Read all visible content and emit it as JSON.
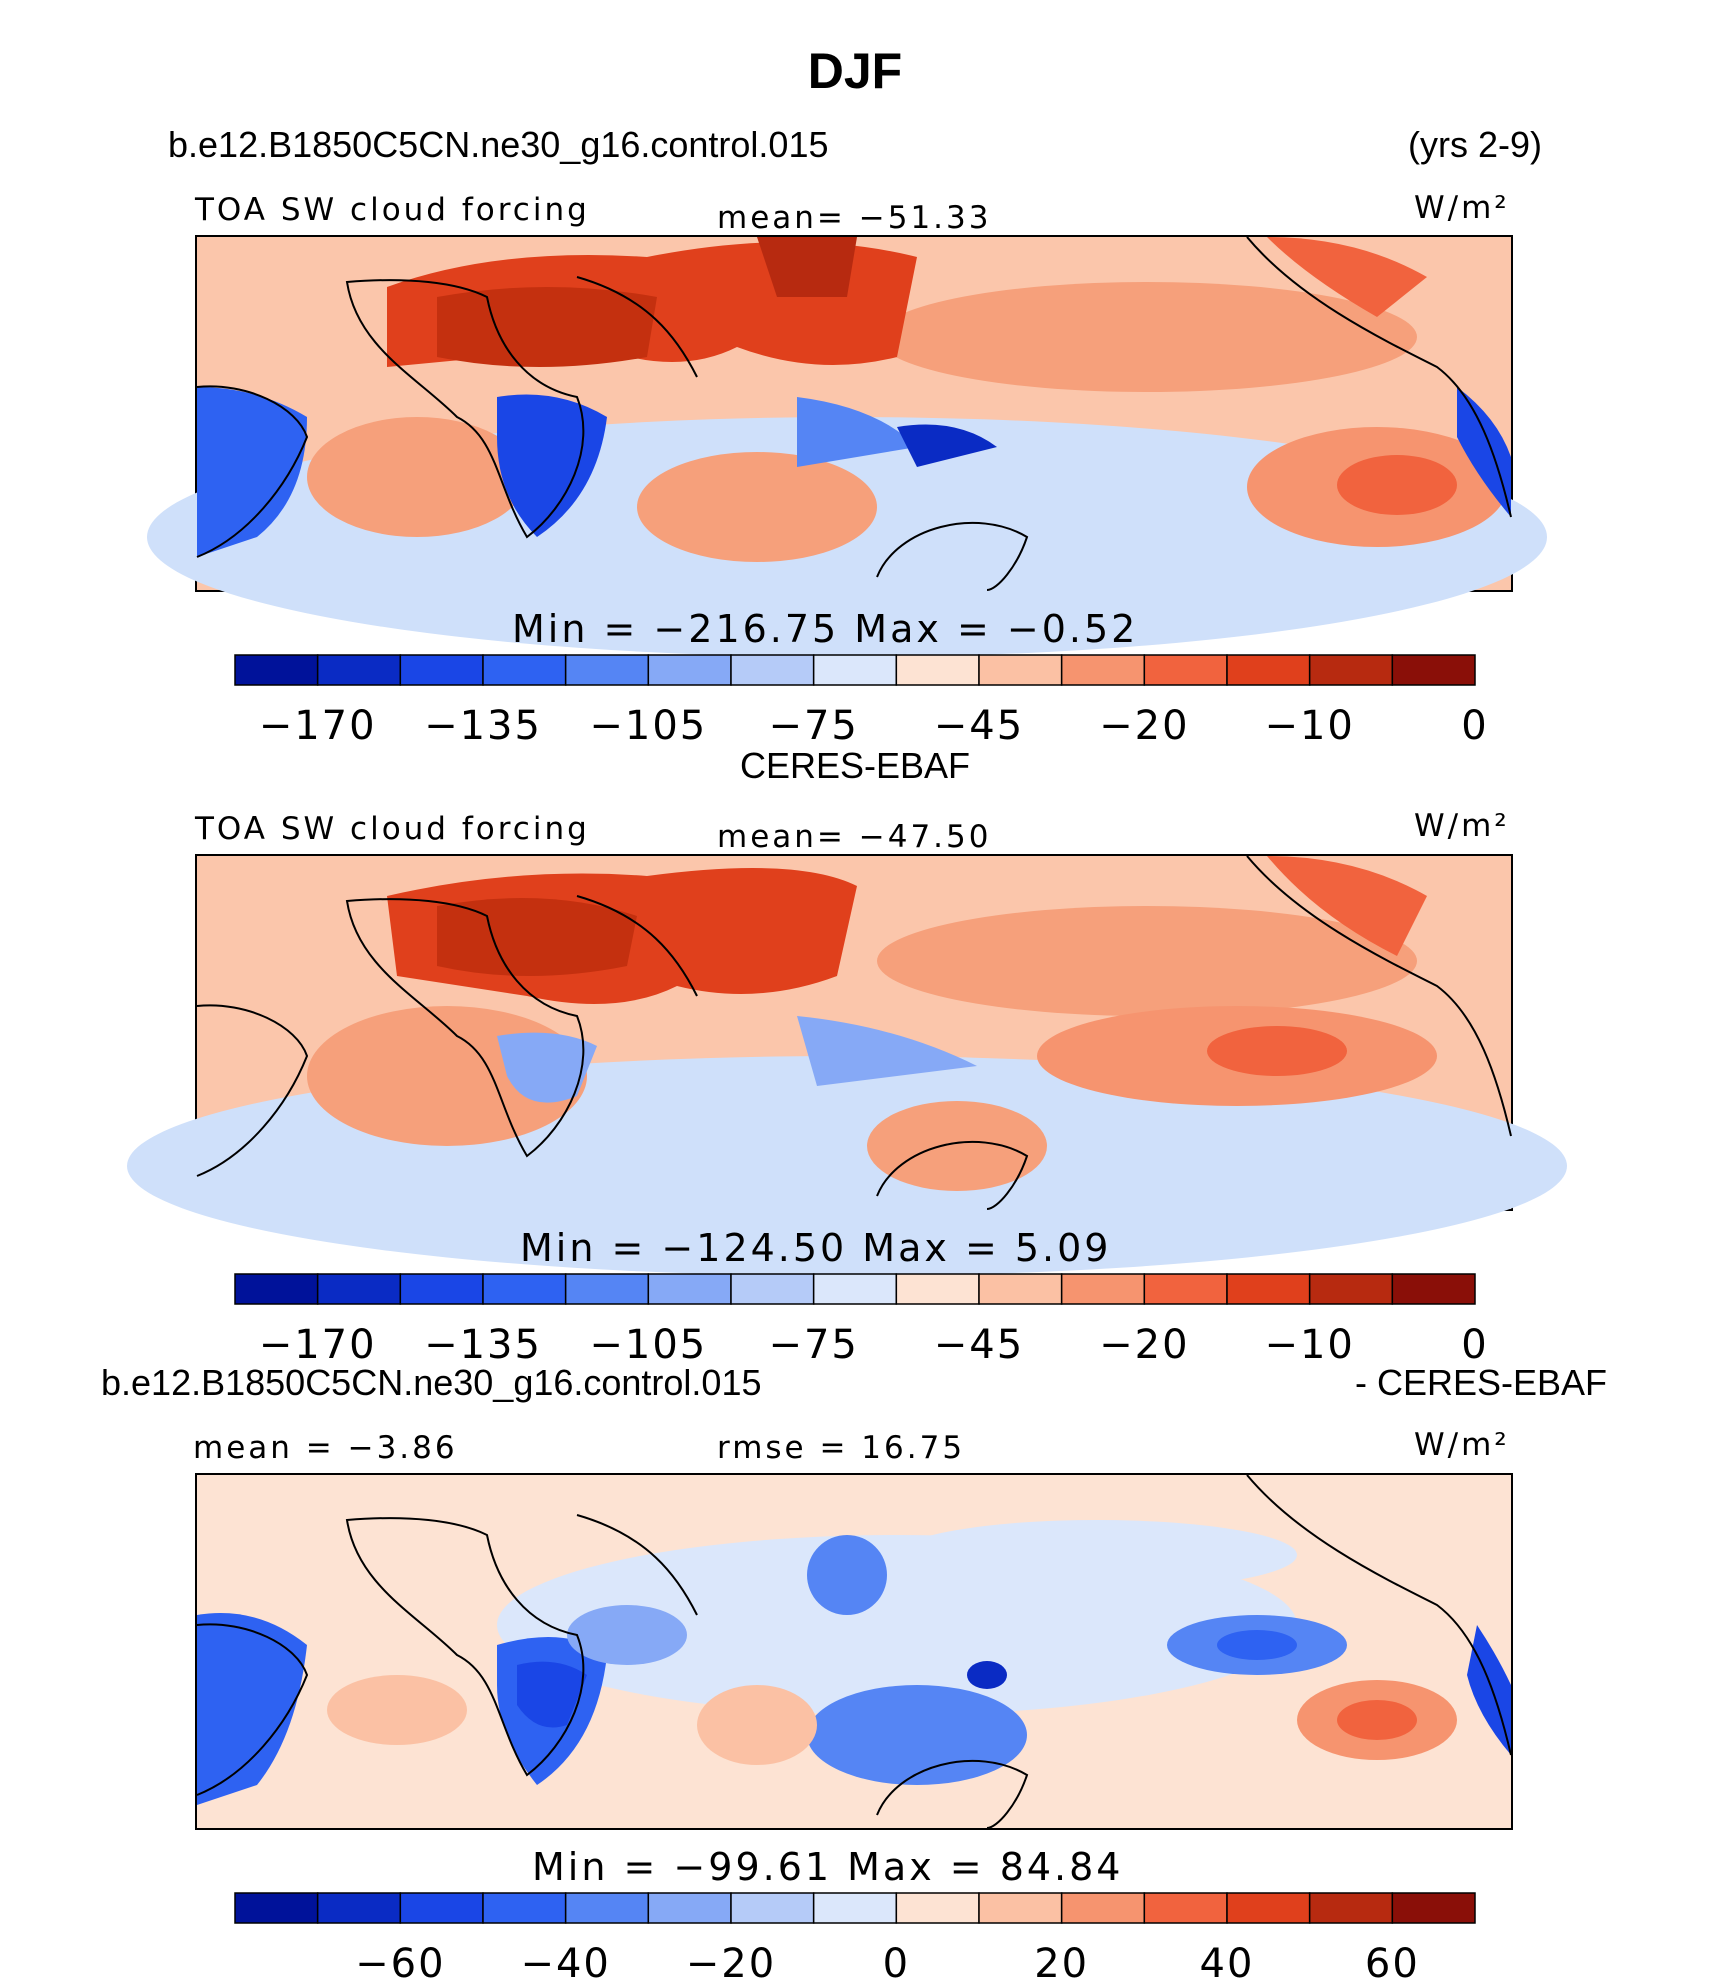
{
  "figure": {
    "title": "DJF",
    "case_name": "b.e12.B1850C5CN.ne30_g16.control.015",
    "years": "(yrs 2-9)",
    "obs_name": "CERES-EBAF",
    "diff_case_name": "b.e12.B1850C5CN.ne30_g16.control.015",
    "diff_obs_name": "- CERES-EBAF"
  },
  "chart_data": [
    {
      "type": "heatmap",
      "panel": "model",
      "left_label": "TOA SW cloud forcing",
      "center_label": "mean=  −51.33",
      "units": "W/m²",
      "stats_label": "Min  =  −216.75  Max  =    −0.52",
      "min": -216.75,
      "max": -0.52,
      "mean": -51.33,
      "colorbar": {
        "tick_labels": [
          "−170",
          "−135",
          "−105",
          "−75",
          "−45",
          "−20",
          "−10",
          "0"
        ],
        "colors": [
          "#00129a",
          "#0a2bc4",
          "#1a46e6",
          "#2e62f2",
          "#5585f4",
          "#86a9f6",
          "#b5cbf8",
          "#dbe7fb",
          "#fde3d3",
          "#fbc1a4",
          "#f6946f",
          "#f1633e",
          "#e0401c",
          "#b72a10",
          "#8a0f08"
        ]
      }
    },
    {
      "type": "heatmap",
      "panel": "obs",
      "left_label": "TOA SW cloud forcing",
      "center_label": "mean=  −47.50",
      "units": "W/m²",
      "stats_label": "Min  =  −124.50  Max  =     5.09",
      "min": -124.5,
      "max": 5.09,
      "mean": -47.5,
      "colorbar": {
        "tick_labels": [
          "−170",
          "−135",
          "−105",
          "−75",
          "−45",
          "−20",
          "−10",
          "0"
        ],
        "colors": [
          "#00129a",
          "#0a2bc4",
          "#1a46e6",
          "#2e62f2",
          "#5585f4",
          "#86a9f6",
          "#b5cbf8",
          "#dbe7fb",
          "#fde3d3",
          "#fbc1a4",
          "#f6946f",
          "#f1633e",
          "#e0401c",
          "#b72a10",
          "#8a0f08"
        ]
      }
    },
    {
      "type": "heatmap",
      "panel": "difference",
      "left_label": "mean  =   −3.86",
      "center_label": "rmse  =   16.75",
      "units": "W/m²",
      "stats_label": "Min  =  −99.61  Max  =   84.84",
      "min": -99.61,
      "max": 84.84,
      "mean": -3.86,
      "rmse": 16.75,
      "colorbar": {
        "tick_labels": [
          "−60",
          "−40",
          "−20",
          "0",
          "20",
          "40",
          "60"
        ],
        "colors": [
          "#00129a",
          "#0a2bc4",
          "#1a46e6",
          "#2e62f2",
          "#5585f4",
          "#86a9f6",
          "#b5cbf8",
          "#dbe7fb",
          "#fde3d3",
          "#fbc1a4",
          "#f6946f",
          "#f1633e",
          "#e0401c",
          "#b72a10",
          "#8a0f08"
        ]
      }
    }
  ]
}
